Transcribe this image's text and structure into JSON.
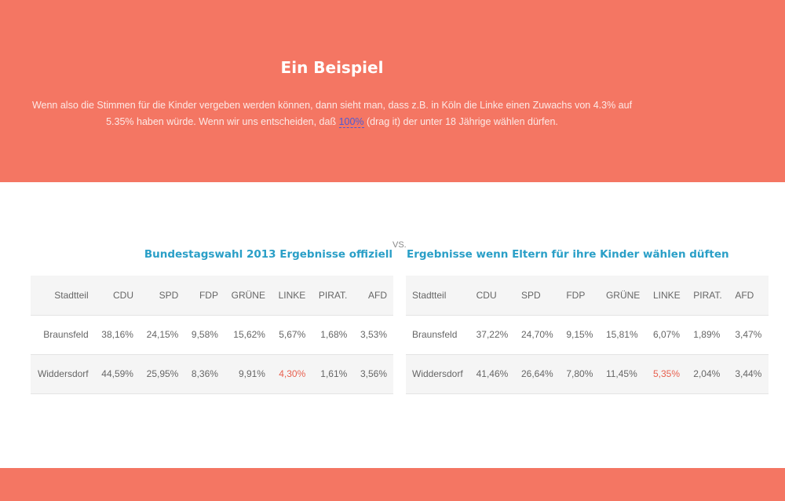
{
  "hero": {
    "title": "Ein Beispiel",
    "text_before": "Wenn also die Stimmen für die Kinder vergeben werden können, dann sieht man, dass z.B. in Köln die Linke einen Zuwachs von 4.3% auf 5.35% haben würde. Wenn wir uns entscheiden, daß ",
    "drag_value": "100%",
    "text_after": " (drag it) der unter 18 Jährige wählen dürfen."
  },
  "vs_label": "VS.",
  "table_official": {
    "title": "Bundestagswahl 2013 Ergebnisse offiziell",
    "columns": [
      "Stadtteil",
      "CDU",
      "SPD",
      "FDP",
      "GRÜNE",
      "LINKE",
      "PIRAT.",
      "AFD"
    ],
    "rows": [
      [
        "Braunsfeld",
        "38,16%",
        "24,15%",
        "9,58%",
        "15,62%",
        "5,67%",
        "1,68%",
        "3,53%"
      ],
      [
        "Widdersdorf",
        "44,59%",
        "25,95%",
        "8,36%",
        "9,91%",
        "4,30%",
        "1,61%",
        "3,56%"
      ]
    ]
  },
  "table_parents": {
    "title": "Ergebnisse wenn Eltern für ihre Kinder wählen düften",
    "columns": [
      "Stadtteil",
      "CDU",
      "SPD",
      "FDP",
      "GRÜNE",
      "LINKE",
      "PIRAT.",
      "AFD"
    ],
    "rows": [
      [
        "Braunsfeld",
        "37,22%",
        "24,70%",
        "9,15%",
        "15,81%",
        "6,07%",
        "1,89%",
        "3,47%"
      ],
      [
        "Widdersdorf",
        "41,46%",
        "26,64%",
        "7,80%",
        "11,45%",
        "5,35%",
        "2,04%",
        "3,44%"
      ]
    ]
  },
  "colors": {
    "accent": "#f47663",
    "title_blue": "#2a9fc7",
    "highlight": "#e8604f",
    "link": "#4b5bd6"
  }
}
